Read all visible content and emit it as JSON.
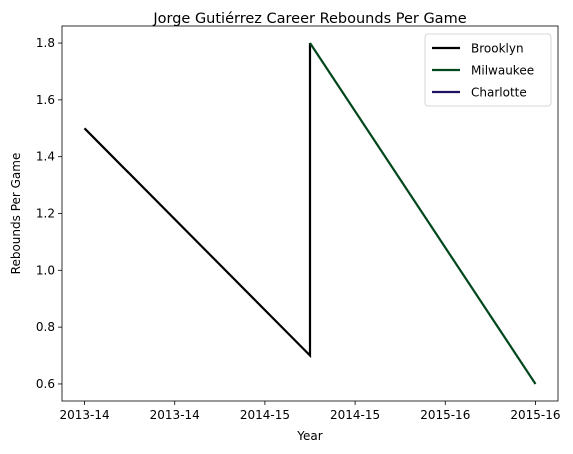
{
  "chart_data": {
    "type": "line",
    "title": "Jorge Gutiérrez  Career Rebounds Per Game",
    "xlabel": "Year",
    "ylabel": "Rebounds Per Game",
    "x_tick_labels": [
      "2013-14",
      "2013-14",
      "2014-15",
      "2014-15",
      "2015-16",
      "2015-16"
    ],
    "y_ticks": [
      0.6,
      0.8,
      1.0,
      1.2,
      1.4,
      1.6,
      1.8
    ],
    "ylim": [
      0.54,
      1.86
    ],
    "xlim": [
      -0.25,
      5.25
    ],
    "grid": false,
    "legend_position": "top-right",
    "series": [
      {
        "name": "Brooklyn",
        "color": "#000000",
        "points": [
          {
            "x": 0,
            "y": 1.5
          },
          {
            "x": 2.5,
            "y": 0.7
          },
          {
            "x": 2.5,
            "y": 1.8
          }
        ]
      },
      {
        "name": "Milwaukee",
        "color": "#00471b",
        "points": [
          {
            "x": 2.5,
            "y": 1.8
          },
          {
            "x": 5,
            "y": 0.6
          }
        ]
      },
      {
        "name": "Charlotte",
        "color": "#1d1160",
        "points": []
      }
    ]
  }
}
